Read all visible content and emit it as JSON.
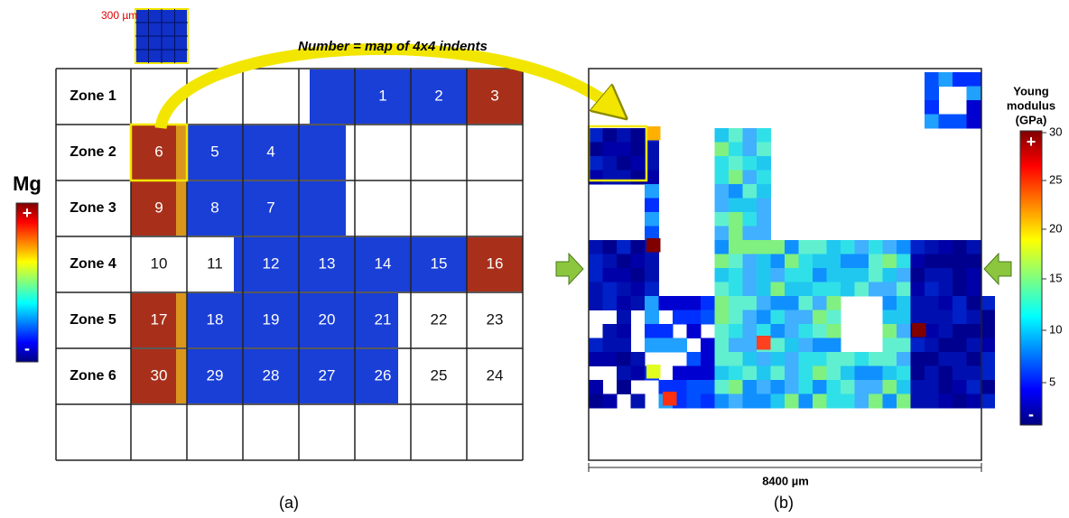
{
  "inset": {
    "scale_label": "300 µm"
  },
  "arrow_caption": "Number = map of 4x4 indents",
  "panel_a": {
    "colorbar": {
      "title": "Mg",
      "max_label": "+",
      "min_label": "-"
    },
    "rows": [
      {
        "zone": "Zone 1",
        "cells": [
          null,
          null,
          null,
          null,
          "1",
          "2",
          "3"
        ]
      },
      {
        "zone": "Zone 2",
        "cells": [
          "6",
          "5",
          "4",
          null,
          null,
          null,
          null
        ]
      },
      {
        "zone": "Zone 3",
        "cells": [
          "9",
          "8",
          "7",
          null,
          null,
          null,
          null
        ]
      },
      {
        "zone": "Zone 4",
        "cells": [
          "10",
          "11",
          "12",
          "13",
          "14",
          "15",
          "16"
        ]
      },
      {
        "zone": "Zone 5",
        "cells": [
          "17",
          "18",
          "19",
          "20",
          "21",
          "22",
          "23"
        ]
      },
      {
        "zone": "Zone 6",
        "cells": [
          "30",
          "29",
          "28",
          "27",
          "26",
          "25",
          "24"
        ]
      }
    ],
    "caption": "(a)"
  },
  "panel_b": {
    "colorbar": {
      "title_lines": [
        "Young",
        "modulus",
        "(GPa)"
      ],
      "ticks": [
        "30",
        "25",
        "20",
        "15",
        "10",
        "5"
      ],
      "max_label": "+",
      "min_label": "-"
    },
    "scale_label": "8400 µm",
    "caption": "(b)"
  }
}
